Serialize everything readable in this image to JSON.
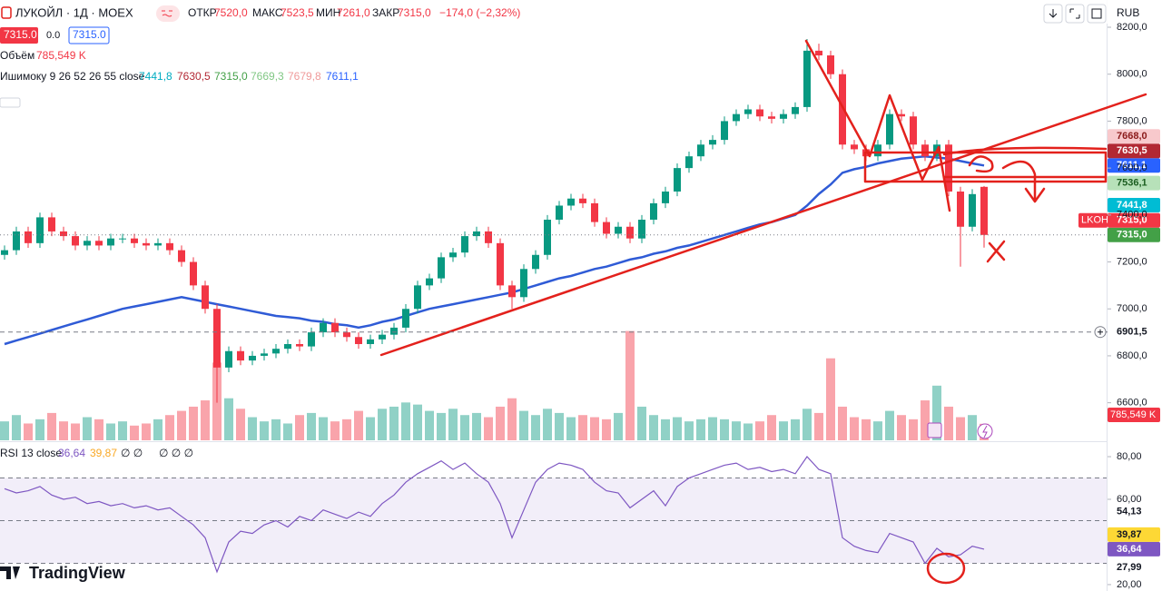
{
  "header": {
    "symbol": "ЛУКОЙЛ · 1Д · MOEX",
    "ohlc": [
      {
        "label": "ОТКР",
        "value": "7520,0"
      },
      {
        "label": "МАКС",
        "value": "7523,5"
      },
      {
        "label": "МИН",
        "value": "7261,0"
      },
      {
        "label": "ЗАКР",
        "value": "7315,0"
      }
    ],
    "change": "−174,0 (−2,32%)",
    "currency": "RUB",
    "price_boxes": [
      "7315.0",
      "0.0",
      "7315.0"
    ]
  },
  "legends": {
    "volume": {
      "name": "Объём",
      "value": "785,549 K"
    },
    "ichimoku": {
      "name": "Ишимоку 9 26 52 26 55 close",
      "values": [
        "7441,8",
        "7630,5",
        "7315,0",
        "7669,3",
        "7679,8",
        "7611,1"
      ]
    },
    "rsi": {
      "name": "RSI 13 close",
      "values": [
        "36,64",
        "39,87",
        "∅ ∅",
        "∅ ∅ ∅"
      ]
    }
  },
  "watermark": "TradingView",
  "chart_data": [
    {
      "type": "candlestick",
      "up_color": "#089981",
      "down_color": "#f23645",
      "open": [
        7230,
        7250,
        7330,
        7280,
        7390,
        7330,
        7310,
        7270,
        7290,
        7270,
        7300,
        7300,
        7280,
        7270,
        7280,
        7250,
        7200,
        7100,
        7000,
        6750,
        6820,
        6780,
        6800,
        6810,
        6830,
        6850,
        6840,
        6900,
        6940,
        6900,
        6880,
        6850,
        6870,
        6890,
        6920,
        7000,
        7100,
        7130,
        7220,
        7240,
        7310,
        7330,
        7280,
        7100,
        7050,
        7170,
        7230,
        7380,
        7440,
        7470,
        7450,
        7370,
        7320,
        7350,
        7300,
        7380,
        7450,
        7500,
        7600,
        7650,
        7700,
        7720,
        7800,
        7830,
        7850,
        7820,
        7810,
        7830,
        7860,
        8100,
        8080,
        8000,
        7700,
        7680,
        7650,
        7700,
        7830,
        7820,
        7700,
        7650,
        7700,
        7500,
        7350,
        7520
      ],
      "high": [
        7270,
        7350,
        7350,
        7410,
        7410,
        7350,
        7330,
        7310,
        7310,
        7320,
        7320,
        7320,
        7300,
        7300,
        7300,
        7270,
        7220,
        7120,
        7020,
        6840,
        6840,
        6820,
        6830,
        6850,
        6870,
        6870,
        6920,
        6960,
        6960,
        6920,
        6900,
        6890,
        6910,
        6940,
        7020,
        7120,
        7150,
        7240,
        7260,
        7330,
        7350,
        7350,
        7300,
        7120,
        7190,
        7250,
        7400,
        7460,
        7490,
        7490,
        7470,
        7390,
        7370,
        7370,
        7400,
        7470,
        7520,
        7620,
        7670,
        7720,
        7740,
        7820,
        7850,
        7870,
        7870,
        7840,
        7850,
        7880,
        8150,
        8130,
        8100,
        8020,
        7720,
        7700,
        7720,
        7850,
        7850,
        7840,
        7720,
        7720,
        7720,
        7520,
        7510,
        7523.5
      ],
      "low": [
        7210,
        7230,
        7260,
        7260,
        7310,
        7290,
        7250,
        7250,
        7250,
        7250,
        7280,
        7260,
        7250,
        7250,
        7230,
        7180,
        7080,
        6980,
        6600,
        6730,
        6760,
        6760,
        6780,
        6790,
        6810,
        6820,
        6820,
        6880,
        6880,
        6860,
        6830,
        6830,
        6850,
        6870,
        6900,
        6980,
        7080,
        7110,
        7200,
        7220,
        7290,
        7260,
        7080,
        7000,
        7030,
        7150,
        7210,
        7360,
        7420,
        7430,
        7350,
        7300,
        7300,
        7280,
        7280,
        7360,
        7430,
        7480,
        7580,
        7630,
        7680,
        7700,
        7780,
        7810,
        7800,
        7790,
        7790,
        7810,
        7840,
        8060,
        7980,
        7680,
        7660,
        7630,
        7630,
        7680,
        7800,
        7680,
        7630,
        7630,
        7480,
        7180,
        7330,
        7261
      ],
      "close": [
        7250,
        7330,
        7280,
        7390,
        7330,
        7310,
        7270,
        7290,
        7270,
        7300,
        7300,
        7280,
        7270,
        7280,
        7250,
        7200,
        7100,
        7000,
        6750,
        6820,
        6780,
        6800,
        6810,
        6830,
        6850,
        6840,
        6900,
        6940,
        6900,
        6880,
        6850,
        6870,
        6890,
        6920,
        7000,
        7100,
        7130,
        7220,
        7240,
        7310,
        7330,
        7280,
        7100,
        7050,
        7170,
        7230,
        7380,
        7440,
        7470,
        7450,
        7370,
        7320,
        7350,
        7300,
        7380,
        7450,
        7500,
        7600,
        7650,
        7700,
        7720,
        7800,
        7830,
        7850,
        7820,
        7810,
        7830,
        7860,
        8100,
        8080,
        8000,
        7700,
        7680,
        7650,
        7700,
        7830,
        7820,
        7700,
        7650,
        7700,
        7500,
        7350,
        7489,
        7315
      ],
      "volume": {
        "ylim": [
          0,
          20000
        ],
        "last_label": "785,549 K",
        "values": [
          900,
          1200,
          800,
          1000,
          1300,
          900,
          800,
          1100,
          1000,
          800,
          900,
          700,
          800,
          1000,
          1200,
          1400,
          1600,
          1900,
          3700,
          2000,
          1500,
          1100,
          900,
          1000,
          800,
          1200,
          1300,
          1100,
          900,
          1000,
          1400,
          1100,
          1500,
          1600,
          1800,
          1700,
          1400,
          1300,
          1500,
          1200,
          1300,
          1100,
          1600,
          2000,
          1400,
          1200,
          1500,
          1300,
          1100,
          1200,
          1100,
          1000,
          1300,
          5200,
          1600,
          1200,
          1000,
          1100,
          900,
          1000,
          1100,
          1000,
          900,
          800,
          900,
          1200,
          900,
          1000,
          1500,
          1300,
          3900,
          1600,
          1100,
          1000,
          900,
          1400,
          1200,
          1000,
          1900,
          2600,
          1600,
          1100,
          1200,
          785.549
        ]
      },
      "lines": [
        {
          "color": "#2f5bd6",
          "values": [
            6850,
            6865,
            6880,
            6895,
            6910,
            6925,
            6940,
            6955,
            6970,
            6985,
            7000,
            7010,
            7020,
            7030,
            7040,
            7050,
            7040,
            7030,
            7020,
            7010,
            7000,
            6990,
            6980,
            6970,
            6965,
            6960,
            6950,
            6945,
            6935,
            6930,
            6920,
            6930,
            6945,
            6955,
            6970,
            6985,
            7000,
            7010,
            7020,
            7030,
            7040,
            7050,
            7060,
            7070,
            7085,
            7100,
            7115,
            7130,
            7140,
            7155,
            7170,
            7180,
            7195,
            7210,
            7220,
            7235,
            7245,
            7260,
            7270,
            7285,
            7300,
            7315,
            7330,
            7345,
            7360,
            7370,
            7385,
            7400,
            7440,
            7490,
            7530,
            7580,
            7595,
            7605,
            7620,
            7630,
            7640,
            7645,
            7650,
            7645,
            7640,
            7630,
            7620,
            7611.1
          ]
        }
      ],
      "ylim": [
        6440,
        8231
      ],
      "yticks": [
        {
          "value": 8200,
          "label": "8200,0"
        },
        {
          "value": 8000,
          "label": "8000,0"
        },
        {
          "value": 7800,
          "label": "7800,0"
        },
        {
          "value": 7600,
          "label": "7600,0"
        },
        {
          "value": 7400,
          "label": "7400,0"
        },
        {
          "value": 7200,
          "label": "7200,0"
        },
        {
          "value": 7000,
          "label": "7000,0"
        },
        {
          "value": 6800,
          "label": "6800,0"
        },
        {
          "value": 6600,
          "label": "6600,0"
        }
      ],
      "price_tags": [
        {
          "value": 7668,
          "label": "7668,0",
          "color": "#f8c9cc",
          "text_color": "#8b1a1a"
        },
        {
          "value": 7630.5,
          "label": "7630,5",
          "color": "#b22833",
          "text_color": "#ffffff"
        },
        {
          "value": 7611.1,
          "label": "7611,1",
          "color": "#2962ff",
          "text_color": "#ffffff"
        },
        {
          "value": 7536.1,
          "label": "7536,1",
          "color": "#b7e1b9",
          "text_color": "#1b5e20"
        },
        {
          "value": 7441.8,
          "label": "7441,8",
          "color": "#00bcd4",
          "text_color": "#ffffff"
        },
        {
          "value": 7315,
          "label": "7315,0",
          "symbol": "LKOH",
          "color": "#f23645",
          "text_color": "#ffffff"
        },
        {
          "value": 7315,
          "label": "7315,0",
          "color": "#43a047",
          "text_color": "#ffffff",
          "line_style": "dotted"
        },
        {
          "value": 6901.5,
          "label": "6901,5",
          "color": "#ffffff",
          "text_color": "#131722",
          "line_style": "dashed"
        }
      ]
    },
    {
      "type": "line",
      "series": [
        {
          "color": "#7e57c2",
          "values": [
            65,
            63,
            64,
            66,
            62,
            60,
            61,
            58,
            59,
            57,
            58,
            56,
            57,
            55,
            56,
            52,
            48,
            42,
            26,
            40,
            45,
            44,
            48,
            50,
            47,
            52,
            50,
            55,
            53,
            51,
            54,
            52,
            58,
            62,
            68,
            72,
            75,
            78,
            74,
            77,
            72,
            68,
            58,
            42,
            55,
            68,
            74,
            77,
            76,
            74,
            68,
            64,
            63,
            56,
            60,
            64,
            57,
            66,
            70,
            72,
            74,
            76,
            77,
            74,
            75,
            73,
            74,
            72,
            80,
            74,
            72,
            42,
            38,
            36,
            35,
            44,
            42,
            40,
            30,
            37,
            33,
            34,
            38,
            36.64
          ]
        }
      ],
      "ylim": [
        17,
        86.4
      ],
      "yticks": [
        {
          "value": 80,
          "label": "80,00"
        },
        {
          "value": 60,
          "label": "60,00"
        },
        {
          "value": 20,
          "label": "20,00"
        }
      ],
      "bands": [
        70,
        50,
        30
      ],
      "price_tags": [
        {
          "value": 54.13,
          "label": "54,13",
          "color": "#ffffff",
          "text_color": "#131722"
        },
        {
          "value": 39.87,
          "label": "39,87",
          "color": "#fdd835",
          "text_color": "#131722"
        },
        {
          "value": 36.64,
          "label": "36,64",
          "color": "#7e57c2",
          "text_color": "#ffffff"
        },
        {
          "value": 27.99,
          "label": "27,99",
          "color": "#ffffff",
          "text_color": "#131722"
        }
      ]
    }
  ]
}
